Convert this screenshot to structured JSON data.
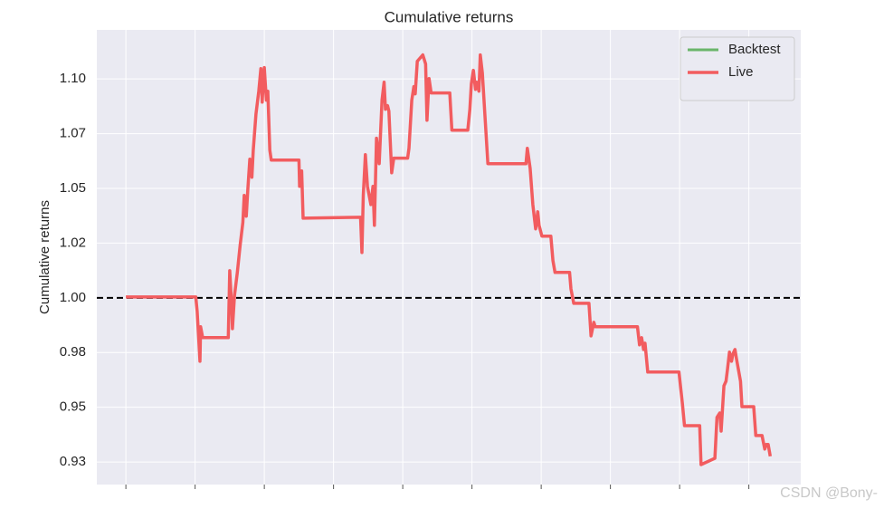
{
  "chart_data": {
    "type": "line",
    "title": "Cumulative returns",
    "ylabel": "Cumulative returns",
    "watermark": "CSDN @Bony-",
    "grid": true,
    "legend": "upper right",
    "hline": 1,
    "xlim": [
      -42,
      975
    ],
    "xticks": [
      0,
      100,
      200,
      300,
      400,
      500,
      600,
      700,
      800,
      900
    ],
    "ylim": [
      0.9147,
      1.1224
    ],
    "yticks": [
      {
        "value": 0.925,
        "label": "0.93"
      },
      {
        "value": 0.95,
        "label": "0.95"
      },
      {
        "value": 0.975,
        "label": "0.98"
      },
      {
        "value": 1.0,
        "label": "1.00"
      },
      {
        "value": 1.025,
        "label": "1.02"
      },
      {
        "value": 1.05,
        "label": "1.05"
      },
      {
        "value": 1.075,
        "label": "1.07"
      },
      {
        "value": 1.1,
        "label": "1.10"
      }
    ],
    "series": [
      {
        "name": "Backtest",
        "color": "#6ab56a",
        "x": [],
        "values": []
      },
      {
        "name": "Live",
        "color": "#f25c5f",
        "x": [
          0,
          101,
          103,
          107,
          108,
          111,
          148,
          150,
          153,
          154,
          157,
          161,
          165,
          169,
          171,
          174,
          176,
          179,
          182,
          184,
          188,
          192,
          195,
          197,
          199,
          200,
          203,
          205,
          208,
          210,
          250,
          251,
          254,
          256,
          339,
          341,
          343,
          346,
          349,
          354,
          357,
          359,
          362,
          366,
          370,
          373,
          375,
          378,
          380,
          384,
          387,
          407,
          409,
          413,
          416,
          418,
          421,
          429,
          433,
          435,
          438,
          441,
          468,
          471,
          494,
          497,
          499,
          502,
          505,
          507,
          510,
          512,
          515,
          523,
          578,
          580,
          584,
          588,
          592,
          595,
          597,
          601,
          614,
          617,
          620,
          641,
          643,
          647,
          669,
          672,
          676,
          678,
          739,
          742,
          745,
          748,
          750,
          754,
          799,
          804,
          807,
          829,
          831,
          851,
          854,
          858,
          860,
          864,
          867,
          869,
          872,
          875,
          877,
          880,
          882,
          888,
          890,
          894,
          907,
          910,
          919,
          923,
          925,
          928,
          931
        ],
        "values": [
          1.0004,
          1.0004,
          0.9938,
          0.971,
          0.9868,
          0.9818,
          0.9818,
          1.0124,
          0.995,
          0.9859,
          1.0012,
          1.0116,
          1.024,
          1.0344,
          1.0468,
          1.0373,
          1.0489,
          1.0633,
          1.0551,
          1.0675,
          1.084,
          1.0944,
          1.1047,
          1.0894,
          1.1027,
          1.1052,
          1.0903,
          1.0944,
          1.0675,
          1.0629,
          1.0629,
          1.0509,
          1.058,
          1.0364,
          1.0368,
          1.0207,
          1.0468,
          1.0654,
          1.0509,
          1.0426,
          1.0509,
          1.0331,
          1.0729,
          1.0613,
          1.0903,
          1.0985,
          1.0861,
          1.0878,
          1.0853,
          1.0571,
          1.0638,
          1.0638,
          1.0683,
          1.0903,
          1.0965,
          1.0932,
          1.1081,
          1.111,
          1.1068,
          1.0811,
          1.1002,
          1.0936,
          1.0936,
          1.0766,
          1.0766,
          1.0861,
          1.0977,
          1.1039,
          1.0952,
          1.0985,
          1.0944,
          1.111,
          1.1027,
          1.0613,
          1.0613,
          1.0683,
          1.0592,
          1.0426,
          1.0315,
          1.0393,
          1.0331,
          1.0282,
          1.0282,
          1.017,
          1.0116,
          1.0116,
          1.0041,
          0.9975,
          0.9975,
          0.9826,
          0.9888,
          0.9868,
          0.9868,
          0.9785,
          0.9818,
          0.9764,
          0.9793,
          0.9661,
          0.9661,
          0.9516,
          0.9416,
          0.9416,
          0.9238,
          0.9267,
          0.9454,
          0.9474,
          0.9391,
          0.9598,
          0.9619,
          0.9669,
          0.9752,
          0.971,
          0.9743,
          0.9764,
          0.9723,
          0.9619,
          0.9503,
          0.9503,
          0.9503,
          0.9371,
          0.9371,
          0.9309,
          0.933,
          0.933,
          0.9276
        ]
      }
    ]
  }
}
